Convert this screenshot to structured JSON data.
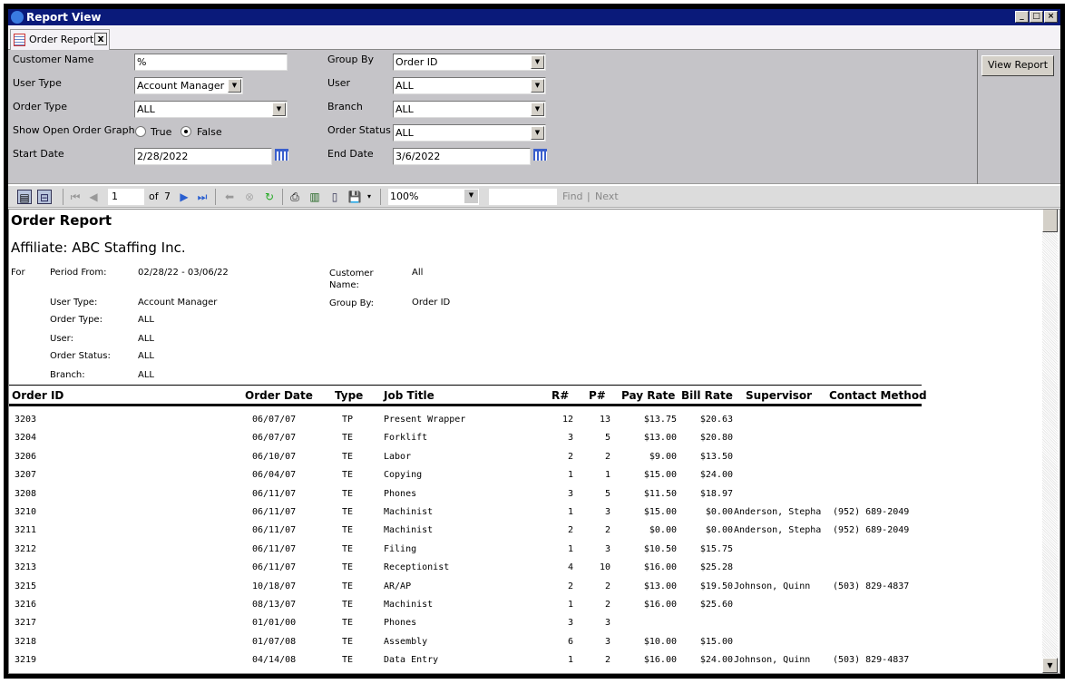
{
  "window": {
    "title": "Report View",
    "controls": [
      "_",
      "□",
      "×"
    ]
  },
  "tab": {
    "label": "Order Report",
    "close": "x"
  },
  "params": {
    "customer_name": {
      "label": "Customer Name",
      "value": "%"
    },
    "user_type": {
      "label": "User Type",
      "value": "Account Manager"
    },
    "order_type": {
      "label": "Order Type",
      "value": "ALL"
    },
    "graph": {
      "label": "Show Open Order Graph",
      "true_label": "True",
      "false_label": "False",
      "selected": "False"
    },
    "start_date": {
      "label": "Start Date",
      "value": "2/28/2022"
    },
    "group_by": {
      "label": "Group By",
      "value": "Order ID"
    },
    "user": {
      "label": "User",
      "value": "ALL"
    },
    "branch": {
      "label": "Branch",
      "value": "ALL"
    },
    "order_status": {
      "label": "Order Status",
      "value": "ALL"
    },
    "end_date": {
      "label": "End Date",
      "value": "3/6/2022"
    },
    "view_report": "View Report"
  },
  "toolbar": {
    "page": "1",
    "of": "of",
    "total": "7",
    "zoom": "100%",
    "find_value": "",
    "find": "Find",
    "separator": "|",
    "next": "Next"
  },
  "report": {
    "title": "Order Report",
    "affiliate": "Affiliate: ABC Staffing Inc.",
    "for": "For",
    "criteria_left": [
      {
        "label": "Period From:",
        "value": "02/28/22 - 03/06/22"
      },
      {
        "label": "User Type:",
        "value": "Account Manager"
      },
      {
        "label": "Order Type:",
        "value": "ALL"
      },
      {
        "label": "User:",
        "value": "ALL"
      },
      {
        "label": "Order Status:",
        "value": "ALL"
      },
      {
        "label": "Branch:",
        "value": "ALL"
      }
    ],
    "criteria_right": [
      {
        "label": "Customer Name:",
        "value": "All"
      },
      {
        "label": "Group By:",
        "value": "Order ID"
      }
    ],
    "columns": [
      "Order ID",
      "Order Date",
      "Type",
      "Job Title",
      "R#",
      "P#",
      "Pay Rate",
      "Bill Rate",
      "Supervisor",
      "Contact Method"
    ],
    "rows": [
      [
        "3203",
        "06/07/07",
        "TP",
        "Present Wrapper",
        "12",
        "13",
        "$13.75",
        "$20.63",
        "",
        ""
      ],
      [
        "3204",
        "06/07/07",
        "TE",
        "Forklift",
        "3",
        "5",
        "$13.00",
        "$20.80",
        "",
        ""
      ],
      [
        "3206",
        "06/10/07",
        "TE",
        "Labor",
        "2",
        "2",
        "$9.00",
        "$13.50",
        "",
        ""
      ],
      [
        "3207",
        "06/04/07",
        "TE",
        "Copying",
        "1",
        "1",
        "$15.00",
        "$24.00",
        "",
        ""
      ],
      [
        "3208",
        "06/11/07",
        "TE",
        "Phones",
        "3",
        "5",
        "$11.50",
        "$18.97",
        "",
        ""
      ],
      [
        "3210",
        "06/11/07",
        "TE",
        "Machinist",
        "1",
        "3",
        "$15.00",
        "$0.00",
        "Anderson, Stepha",
        "(952) 689-2049"
      ],
      [
        "3211",
        "06/11/07",
        "TE",
        "Machinist",
        "2",
        "2",
        "$0.00",
        "$0.00",
        "Anderson, Stepha",
        "(952) 689-2049"
      ],
      [
        "3212",
        "06/11/07",
        "TE",
        "Filing",
        "1",
        "3",
        "$10.50",
        "$15.75",
        "",
        ""
      ],
      [
        "3213",
        "06/11/07",
        "TE",
        "Receptionist",
        "4",
        "10",
        "$16.00",
        "$25.28",
        "",
        ""
      ],
      [
        "3215",
        "10/18/07",
        "TE",
        "AR/AP",
        "2",
        "2",
        "$13.00",
        "$19.50",
        "Johnson, Quinn",
        "(503) 829-4837"
      ],
      [
        "3216",
        "08/13/07",
        "TE",
        "Machinist",
        "1",
        "2",
        "$16.00",
        "$25.60",
        "",
        ""
      ],
      [
        "3217",
        "01/01/00",
        "TE",
        "Phones",
        "3",
        "3",
        "",
        "",
        "",
        ""
      ],
      [
        "3218",
        "01/07/08",
        "TE",
        "Assembly",
        "6",
        "3",
        "$10.00",
        "$15.00",
        "",
        ""
      ],
      [
        "3219",
        "04/14/08",
        "TE",
        "Data Entry",
        "1",
        "2",
        "$16.00",
        "$24.00",
        "Johnson, Quinn",
        "(503) 829-4837"
      ]
    ]
  }
}
